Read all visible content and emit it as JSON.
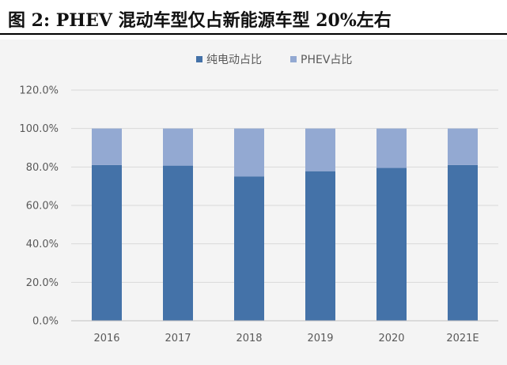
{
  "figure": {
    "caption": "图 2: PHEV 混动车型仅占新能源车型 20%左右"
  },
  "chart_data": {
    "type": "bar",
    "stacked": true,
    "categories": [
      "2016",
      "2017",
      "2018",
      "2019",
      "2020",
      "2021E"
    ],
    "series": [
      {
        "name": "纯电动占比",
        "color": "#4472a8",
        "values": [
          81.0,
          80.7,
          75.0,
          77.8,
          79.5,
          81.0
        ]
      },
      {
        "name": "PHEV占比",
        "color": "#93a9d2",
        "values": [
          19.0,
          19.3,
          25.0,
          22.2,
          20.5,
          19.0
        ]
      }
    ],
    "y_ticks": [
      "0.0%",
      "20.0%",
      "40.0%",
      "60.0%",
      "80.0%",
      "100.0%",
      "120.0%"
    ],
    "ylim": [
      0,
      120
    ],
    "legend_position": "top",
    "grid": true,
    "colors": {
      "background": "#f4f4f4",
      "grid": "#d9d9d9",
      "axis": "#bfbfbf"
    }
  }
}
